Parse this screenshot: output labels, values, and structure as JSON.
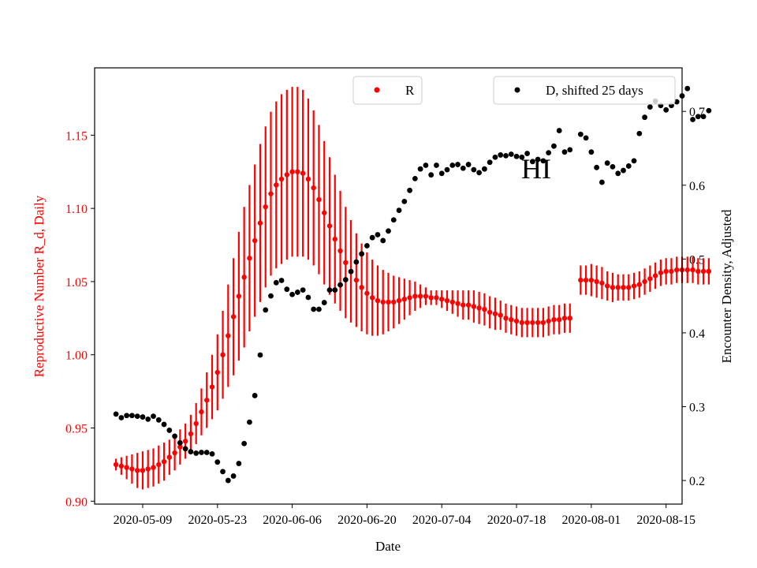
{
  "chart_data": {
    "type": "scatter",
    "title": "",
    "xlabel": "Date",
    "ylabel_left": "Reproductive Number R_d, Daily",
    "ylabel_right": "Encounter Density, Adjusted",
    "annotation": "HI",
    "x_range": [
      "2020-04-30",
      "2020-08-18"
    ],
    "x_ticks": [
      "2020-05-09",
      "2020-05-23",
      "2020-06-06",
      "2020-06-20",
      "2020-07-04",
      "2020-07-18",
      "2020-08-01",
      "2020-08-15"
    ],
    "ylim_left": [
      0.898,
      1.196
    ],
    "yticks_left": [
      "0.90",
      "0.95",
      "1.00",
      "1.05",
      "1.10",
      "1.15"
    ],
    "ylim_right": [
      0.168,
      0.759
    ],
    "yticks_right": [
      "0.2",
      "0.3",
      "0.4",
      "0.5",
      "0.6",
      "0.7"
    ],
    "legend": [
      {
        "label": "R",
        "color": "#ff0000",
        "placement": "top-center"
      },
      {
        "label": "D, shifted 25 days",
        "color": "#000000",
        "placement": "top-right"
      }
    ],
    "colors": {
      "r_series": "#ff0000",
      "d_series": "#000000"
    },
    "series_R": {
      "start_date": "2020-05-04",
      "values": [
        0.925,
        0.924,
        0.923,
        0.922,
        0.921,
        0.921,
        0.922,
        0.923,
        0.925,
        0.927,
        0.93,
        0.933,
        0.937,
        0.941,
        0.946,
        0.953,
        0.961,
        0.969,
        0.978,
        0.988,
        1.0,
        1.013,
        1.026,
        1.04,
        1.053,
        1.066,
        1.078,
        1.09,
        1.101,
        1.11,
        1.116,
        1.12,
        1.123,
        1.125,
        1.125,
        1.124,
        1.12,
        1.114,
        1.106,
        1.097,
        1.088,
        1.079,
        1.071,
        1.063,
        1.057,
        1.051,
        1.046,
        1.042,
        1.039,
        1.037,
        1.036,
        1.036,
        1.036,
        1.037,
        1.038,
        1.039,
        1.04,
        1.04,
        1.04,
        1.039,
        1.039,
        1.038,
        1.037,
        1.036,
        1.035,
        1.034,
        1.034,
        1.033,
        1.032,
        1.031,
        1.029,
        1.028,
        1.027,
        1.025,
        1.024,
        1.023,
        1.022,
        1.022,
        1.022,
        1.022,
        1.022,
        1.023,
        1.024,
        1.024,
        1.025,
        1.025,
        null,
        1.051,
        1.051,
        1.051,
        1.05,
        1.049,
        1.047,
        1.046,
        1.046,
        1.046,
        1.046,
        1.047,
        1.048,
        1.05,
        1.052,
        1.054,
        1.056,
        1.057,
        1.057,
        1.058,
        1.058,
        1.058,
        1.058,
        1.057,
        1.057,
        1.057
      ],
      "errors": [
        0.004,
        0.006,
        0.008,
        0.01,
        0.012,
        0.013,
        0.013,
        0.013,
        0.013,
        0.013,
        0.012,
        0.012,
        0.012,
        0.012,
        0.013,
        0.014,
        0.016,
        0.019,
        0.022,
        0.026,
        0.03,
        0.035,
        0.04,
        0.044,
        0.048,
        0.05,
        0.052,
        0.054,
        0.055,
        0.056,
        0.057,
        0.058,
        0.058,
        0.058,
        0.058,
        0.057,
        0.055,
        0.053,
        0.051,
        0.049,
        0.047,
        0.044,
        0.041,
        0.038,
        0.035,
        0.032,
        0.03,
        0.028,
        0.026,
        0.024,
        0.022,
        0.02,
        0.018,
        0.016,
        0.014,
        0.012,
        0.01,
        0.008,
        0.006,
        0.005,
        0.005,
        0.006,
        0.007,
        0.008,
        0.009,
        0.01,
        0.01,
        0.011,
        0.011,
        0.011,
        0.011,
        0.011,
        0.01,
        0.01,
        0.01,
        0.01,
        0.01,
        0.01,
        0.01,
        0.01,
        0.01,
        0.01,
        0.01,
        0.01,
        0.01,
        0.01,
        null,
        0.01,
        0.01,
        0.011,
        0.011,
        0.011,
        0.01,
        0.01,
        0.009,
        0.009,
        0.009,
        0.009,
        0.009,
        0.009,
        0.009,
        0.009,
        0.009,
        0.009,
        0.009,
        0.009,
        0.009,
        0.009,
        0.009,
        0.009,
        0.009,
        0.009
      ]
    },
    "series_D": {
      "start_date": "2020-05-04",
      "values": [
        0.29,
        0.285,
        0.288,
        0.288,
        0.287,
        0.286,
        0.283,
        0.287,
        0.282,
        0.276,
        0.268,
        0.26,
        0.251,
        0.243,
        0.239,
        0.237,
        0.238,
        0.238,
        0.236,
        0.225,
        0.212,
        0.2,
        0.206,
        0.223,
        0.25,
        0.279,
        0.315,
        0.37,
        0.431,
        0.45,
        0.468,
        0.471,
        0.459,
        0.452,
        0.455,
        0.458,
        0.448,
        0.432,
        0.432,
        0.441,
        0.458,
        0.458,
        0.465,
        0.472,
        0.483,
        0.496,
        0.507,
        0.518,
        0.529,
        0.533,
        0.525,
        0.538,
        0.553,
        0.566,
        0.578,
        0.593,
        0.609,
        0.622,
        0.627,
        0.614,
        0.627,
        0.616,
        0.621,
        0.627,
        0.628,
        0.623,
        0.628,
        0.621,
        0.617,
        0.622,
        0.631,
        0.638,
        0.641,
        0.64,
        0.642,
        0.639,
        0.638,
        0.643,
        0.632,
        0.635,
        0.633,
        0.644,
        0.653,
        0.674,
        0.645,
        0.648,
        0.645,
        0.669,
        0.664,
        0.645,
        0.624,
        0.604,
        0.63,
        0.625,
        0.616,
        0.62,
        0.626,
        0.633,
        0.67,
        0.692,
        0.706,
        0.714,
        0.708,
        0.702,
        0.708,
        0.713,
        0.721,
        0.731,
        0.689,
        0.693,
        0.693,
        0.701
      ],
      "missing_indices": [
        86
      ]
    }
  }
}
